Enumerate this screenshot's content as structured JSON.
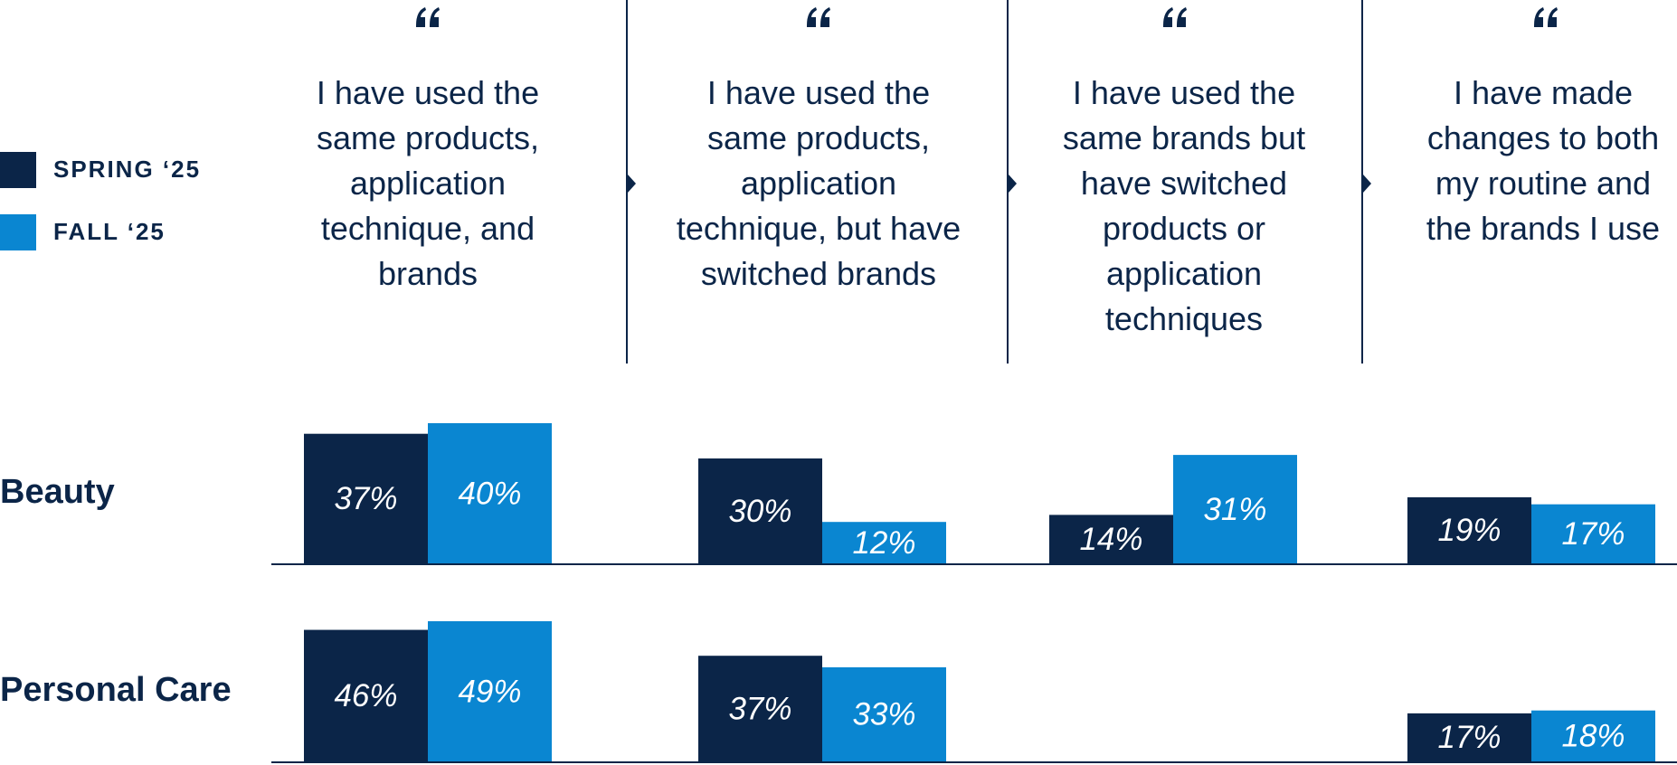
{
  "chart_data": {
    "type": "bar",
    "categories": [
      "I have used the same products, application technique, and brands",
      "I have used the same products, application technique, but have switched brands",
      "I have used the same brands but have switched products or application techniques",
      "I have made changes to both my routine and the brands I use"
    ],
    "series": [
      {
        "name": "SPRING ‘25",
        "color": "#0b2548"
      },
      {
        "name": "FALL ‘25",
        "color": "#0a86d1"
      }
    ],
    "panels": [
      {
        "title": "Beauty",
        "values": [
          [
            37,
            30,
            14,
            19
          ],
          [
            40,
            12,
            31,
            17
          ]
        ],
        "value_labels": [
          [
            "37%",
            "30%",
            "14%",
            "19%"
          ],
          [
            "40%",
            "12%",
            "31%",
            "17%"
          ]
        ]
      },
      {
        "title": "Personal Care",
        "values": [
          [
            46,
            37,
            null,
            17
          ],
          [
            49,
            33,
            null,
            18
          ]
        ],
        "value_labels": [
          [
            "46%",
            "37%",
            null,
            "17%"
          ],
          [
            "49%",
            "33%",
            null,
            "18%"
          ]
        ]
      }
    ]
  }
}
